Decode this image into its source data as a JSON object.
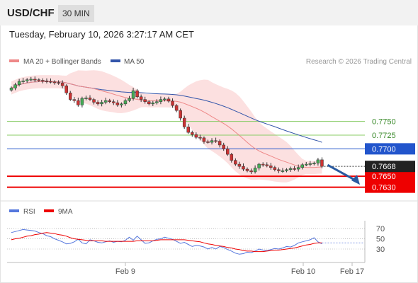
{
  "header": {
    "symbol": "USD/CHF",
    "timeframe": "30 MIN",
    "datetime": "Tuesday, February 10, 2026 3:27:17 AM CET"
  },
  "legend": {
    "ma20_label": "MA 20 + Bollinger Bands",
    "ma50_label": "MA 50",
    "credit": "Research © 2026 Trading Central",
    "rsi_label": "RSI",
    "rsi_ma_label": "9MA"
  },
  "colors": {
    "bull": "#44aa55",
    "bear": "#cc3333",
    "ma20": "#ee8888",
    "ma50": "#3355aa",
    "band": "#fcdada",
    "support": "#ee0000",
    "pivot": "#2255cc",
    "resistance": "#88cc66",
    "rsi": "#5577dd",
    "arrow": "#2a5aa0"
  },
  "chart_data": [
    {
      "type": "candlestick",
      "title": "USD/CHF 30 MIN",
      "ylim": [
        0.7605,
        0.7845
      ],
      "x_ticks": [
        "Feb 9",
        "Feb 10",
        "Feb 17"
      ],
      "last_price": 0.7668,
      "levels": [
        {
          "label": "0.7750",
          "value": 0.775,
          "kind": "resistance"
        },
        {
          "label": "0.7725",
          "value": 0.7725,
          "kind": "resistance"
        },
        {
          "label": "0.7700",
          "value": 0.77,
          "kind": "pivot"
        },
        {
          "label": "0.7650",
          "value": 0.765,
          "kind": "support"
        },
        {
          "label": "0.7630",
          "value": 0.763,
          "kind": "support"
        }
      ],
      "closes": [
        0.7811,
        0.7817,
        0.7823,
        0.7824,
        0.7826,
        0.7827,
        0.7826,
        0.7825,
        0.7824,
        0.7823,
        0.7822,
        0.7821,
        0.782,
        0.7815,
        0.7802,
        0.779,
        0.7788,
        0.778,
        0.7792,
        0.7793,
        0.779,
        0.7785,
        0.7782,
        0.7785,
        0.7788,
        0.7786,
        0.7784,
        0.778,
        0.7782,
        0.7788,
        0.7792,
        0.7806,
        0.7795,
        0.779,
        0.7786,
        0.7782,
        0.7784,
        0.7786,
        0.779,
        0.7791,
        0.7787,
        0.7779,
        0.777,
        0.7756,
        0.774,
        0.773,
        0.7726,
        0.7721,
        0.772,
        0.7713,
        0.7712,
        0.7715,
        0.7714,
        0.7707,
        0.77,
        0.769,
        0.7679,
        0.7672,
        0.7668,
        0.7663,
        0.766,
        0.7658,
        0.7665,
        0.7672,
        0.7671,
        0.7669,
        0.7666,
        0.7662,
        0.766,
        0.766,
        0.7662,
        0.7664,
        0.7663,
        0.7666,
        0.7671,
        0.7672,
        0.7673,
        0.7674,
        0.768,
        0.7668
      ],
      "rsi_axis_ticks": [
        "70",
        "50",
        "30"
      ],
      "rsi_ylim": [
        8,
        85
      ],
      "rsi": [
        62,
        64,
        66,
        68,
        67,
        66,
        65,
        62,
        60,
        56,
        54,
        50,
        47,
        44,
        40,
        41,
        44,
        49,
        42,
        40,
        48,
        46,
        43,
        42,
        44,
        46,
        43,
        45,
        44,
        47,
        53,
        47,
        55,
        48,
        41,
        42,
        46,
        49,
        50,
        53,
        51,
        49,
        45,
        41,
        43,
        39,
        35,
        37,
        36,
        34,
        30,
        33,
        30,
        35,
        33,
        29,
        26,
        22,
        20,
        21,
        24,
        23,
        26,
        30,
        28,
        27,
        29,
        31,
        30,
        32,
        35,
        34,
        37,
        42,
        44,
        46,
        48,
        52,
        44,
        40
      ],
      "rsi_ma": [
        48,
        50,
        51,
        53,
        55,
        56,
        58,
        59,
        61,
        62,
        61,
        60,
        58,
        57,
        55,
        52,
        50,
        49,
        48,
        47,
        46,
        46,
        46,
        46,
        45,
        45,
        45,
        45,
        45,
        45,
        45,
        45,
        46,
        46,
        46,
        46,
        46,
        47,
        48,
        48,
        48,
        48,
        48,
        48,
        48,
        47,
        46,
        45,
        44,
        42,
        40,
        39,
        37,
        36,
        35,
        33,
        32,
        30,
        29,
        27,
        26,
        26,
        25,
        25,
        25,
        26,
        27,
        28,
        28,
        29,
        30,
        31,
        32,
        34,
        36,
        38,
        39,
        41,
        42,
        42
      ]
    }
  ]
}
